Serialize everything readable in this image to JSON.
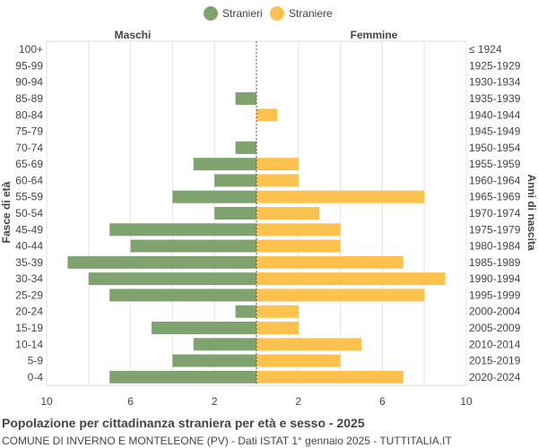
{
  "title": "Popolazione per cittadinanza straniera per età e sesso - 2025",
  "subtitle": "COMUNE DI INVERNO E MONTELEONE (PV) - Dati ISTAT 1° gennaio 2025 - TUTTITALIA.IT",
  "chart_data": {
    "type": "bar",
    "orientation": "horizontal-population-pyramid",
    "left_header": "Maschi",
    "right_header": "Femmine",
    "ylabel_left": "Fasce di età",
    "ylabel_right": "Anni di nascita",
    "xlim": [
      -10,
      10
    ],
    "x_tick_values": [
      -10,
      -6,
      -2,
      2,
      6,
      10
    ],
    "x_tick_labels": [
      "10",
      "6",
      "2",
      "2",
      "6",
      "10"
    ],
    "grid": true,
    "legend_position": "top-center",
    "categories": [
      "100+",
      "95-99",
      "90-94",
      "85-89",
      "80-84",
      "75-79",
      "70-74",
      "65-69",
      "60-64",
      "55-59",
      "50-54",
      "45-49",
      "40-44",
      "35-39",
      "30-34",
      "25-29",
      "20-24",
      "15-19",
      "10-14",
      "5-9",
      "0-4"
    ],
    "birth_years": [
      "≤ 1924",
      "1925-1929",
      "1930-1934",
      "1935-1939",
      "1940-1944",
      "1945-1949",
      "1950-1954",
      "1955-1959",
      "1960-1964",
      "1965-1969",
      "1970-1974",
      "1975-1979",
      "1980-1984",
      "1985-1989",
      "1990-1994",
      "1995-1999",
      "2000-2004",
      "2005-2009",
      "2010-2014",
      "2015-2019",
      "2020-2024"
    ],
    "series": [
      {
        "name": "Stranieri",
        "color": "#7fa36f",
        "values": [
          0,
          0,
          0,
          1,
          0,
          0,
          1,
          3,
          2,
          4,
          2,
          7,
          6,
          9,
          8,
          7,
          1,
          5,
          3,
          4,
          7
        ]
      },
      {
        "name": "Straniere",
        "color": "#fdc14e",
        "values": [
          0,
          0,
          0,
          0,
          1,
          0,
          0,
          2,
          2,
          8,
          3,
          4,
          4,
          7,
          9,
          8,
          2,
          2,
          5,
          4,
          7
        ]
      }
    ]
  }
}
